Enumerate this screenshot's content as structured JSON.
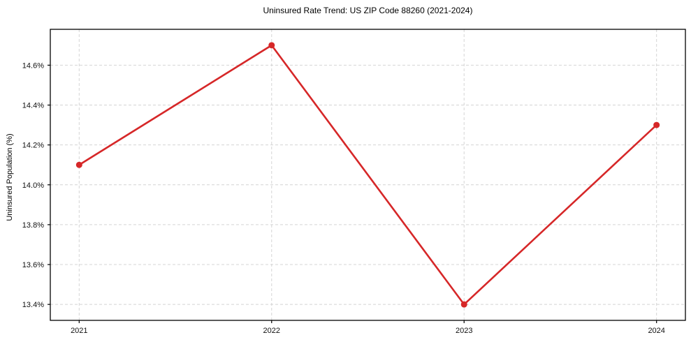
{
  "chart_data": {
    "type": "line",
    "title": "Uninsured Rate Trend: US ZIP Code 88260 (2021-2024)",
    "xlabel": "",
    "ylabel": "Uninsured Population (%)",
    "x": [
      2021,
      2022,
      2023,
      2024
    ],
    "x_tick_labels": [
      "2021",
      "2022",
      "2023",
      "2024"
    ],
    "series": [
      {
        "name": "Uninsured rate",
        "values": [
          14.1,
          14.7,
          13.4,
          14.3
        ]
      }
    ],
    "y_ticks": [
      13.4,
      13.6,
      13.8,
      14.0,
      14.2,
      14.4,
      14.6
    ],
    "y_tick_labels": [
      "13.4%",
      "13.6%",
      "13.8%",
      "14.0%",
      "14.2%",
      "14.4%",
      "14.6%"
    ],
    "xlim": [
      2020.85,
      2024.15
    ],
    "ylim": [
      13.32,
      14.78
    ],
    "grid": true,
    "legend": "none",
    "colors": {
      "line": "#d62728",
      "marker": "#d62728",
      "grid": "#d4d4d4",
      "spine": "#000000",
      "background": "#ffffff"
    },
    "marker": "circle"
  }
}
